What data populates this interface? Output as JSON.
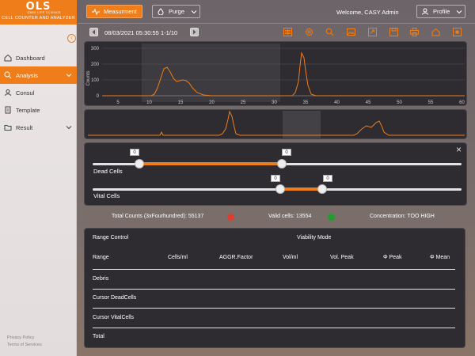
{
  "app": {
    "logo": "OLS",
    "logo_sub": "OMNI LIFE SCIENCE",
    "name": "CELL COUNTER AND ANALYZER"
  },
  "sidebar": {
    "items": [
      {
        "label": "Dashboard",
        "icon": "home-icon",
        "active": false
      },
      {
        "label": "Analysis",
        "icon": "search-icon",
        "active": true
      },
      {
        "label": "Consul",
        "icon": "user-icon",
        "active": false
      },
      {
        "label": "Template",
        "icon": "document-icon",
        "active": false
      },
      {
        "label": "Result",
        "icon": "folder-icon",
        "active": false
      }
    ],
    "footer": {
      "privacy": "Privacy Policy",
      "terms": "Terms of Services"
    }
  },
  "header": {
    "measure_label": "Measurment",
    "purge_label": "Purge",
    "welcome": "Welcome, CASY Admin",
    "profile_label": "Profile"
  },
  "toolbar": {
    "date": "08/03/2021",
    "time": "05:30:55",
    "range": "1-1/10",
    "tools": [
      "grid-icon",
      "settings-icon",
      "zoom-icon",
      "image-icon",
      "export-icon",
      "save-icon",
      "print-icon",
      "home-icon",
      "close-box-icon"
    ]
  },
  "chart": {
    "ylabel": "Counts",
    "yticks": [
      0,
      100,
      200,
      300
    ],
    "xticks": [
      5,
      10,
      15,
      20,
      25,
      30,
      35,
      40,
      45,
      50,
      55,
      60
    ],
    "accent": "#ef7d1a"
  },
  "sliders": {
    "dead": {
      "label": "Dead Cells",
      "min_val": "0",
      "max_val": "0"
    },
    "vital": {
      "label": "Vital Cells",
      "min_val": "0",
      "max_val": "0"
    }
  },
  "stats": {
    "total_counts": "Total Counts (3xFourhundred): 55137",
    "total_color": "#e03c31",
    "valid_cells": "Valid cells: 13554",
    "valid_color": "#1f9e2c",
    "concentration": "Concentration: TOO HIGH"
  },
  "table": {
    "range_control": "Range Control",
    "viability_mode": "Viability Mode",
    "columns": [
      "Range",
      "Cells/ml",
      "AGGR.Factor",
      "Vol/ml",
      "Vol. Peak",
      "Φ Peak",
      "Φ Mean"
    ],
    "rows": [
      "Debris",
      "Cursor DeadCells",
      "Cursor VitalCells",
      "Total"
    ]
  }
}
